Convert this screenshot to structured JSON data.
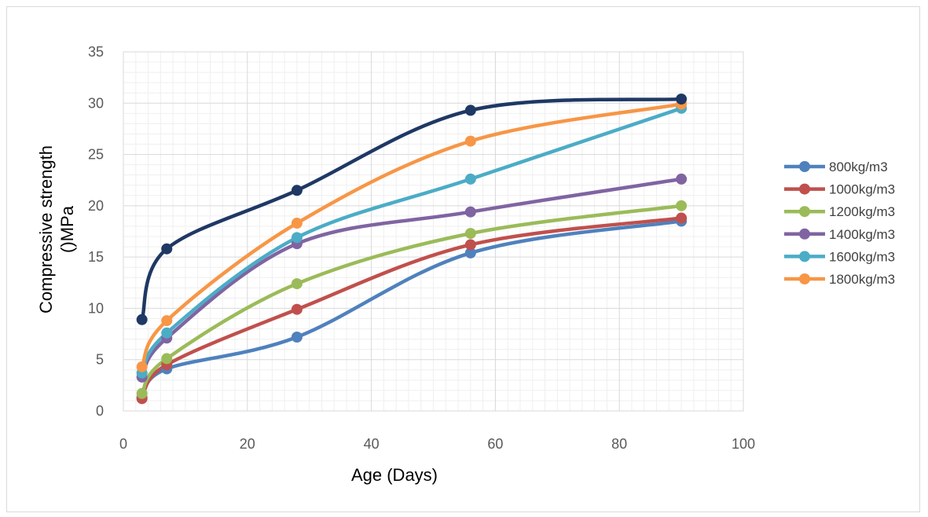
{
  "chart_data": {
    "type": "line",
    "title": "",
    "xlabel": "Age (Days)",
    "ylabel_line1": "Compressive strength",
    "ylabel_line2": "()MPa",
    "xlim": [
      0,
      100
    ],
    "ylim": [
      0,
      35
    ],
    "x_ticks": [
      0,
      20,
      40,
      60,
      80,
      100
    ],
    "y_ticks": [
      0,
      5,
      10,
      15,
      20,
      25,
      30,
      35
    ],
    "x_minor_step": 2,
    "y_minor_step": 1,
    "grid": true,
    "legend_position": "right",
    "series": [
      {
        "name": "800kg/m3",
        "color": "#4f81bd",
        "x": [
          3,
          7,
          28,
          56,
          90
        ],
        "y": [
          1.3,
          4.1,
          7.2,
          15.4,
          18.5
        ]
      },
      {
        "name": "1000kg/m3",
        "color": "#c0504d",
        "x": [
          3,
          7,
          28,
          56,
          90
        ],
        "y": [
          1.2,
          4.5,
          9.9,
          16.2,
          18.8
        ]
      },
      {
        "name": "1200kg/m3",
        "color": "#9bbb59",
        "x": [
          3,
          7,
          28,
          56,
          90
        ],
        "y": [
          1.7,
          5.1,
          12.4,
          17.3,
          20.0
        ]
      },
      {
        "name": "1400kg/m3",
        "color": "#8064a2",
        "x": [
          3,
          7,
          28,
          56,
          90
        ],
        "y": [
          3.3,
          7.1,
          16.3,
          19.4,
          22.6
        ]
      },
      {
        "name": "1600kg/m3",
        "color": "#4bacc6",
        "x": [
          3,
          7,
          28,
          56,
          90
        ],
        "y": [
          3.7,
          7.6,
          16.9,
          22.6,
          29.5
        ]
      },
      {
        "name": "1800kg/m3",
        "color": "#f79646",
        "x": [
          3,
          7,
          28,
          56,
          90
        ],
        "y": [
          4.3,
          8.8,
          18.3,
          26.3,
          29.9
        ]
      },
      {
        "name": "",
        "color": "#1f3864",
        "x": [
          3,
          7,
          28,
          56,
          90
        ],
        "y": [
          8.9,
          15.8,
          21.5,
          29.3,
          30.4
        ]
      }
    ]
  }
}
